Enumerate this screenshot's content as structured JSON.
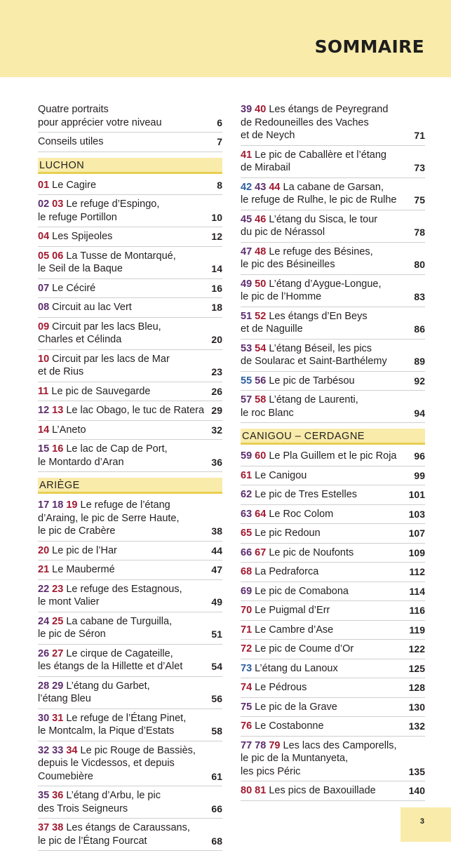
{
  "header": {
    "title": "SOMMAIRE"
  },
  "footer": {
    "page": "3"
  },
  "colors": {
    "band": "#f9ebaa",
    "section_rule": "#e7cf52",
    "red": "#a2192f",
    "purple": "#5c2d6e",
    "blue": "#2c5e9d"
  },
  "left": [
    {
      "kind": "entry",
      "nums": [],
      "text": "Quatre portraits",
      "cont": [
        "pour apprécier votre niveau"
      ],
      "page": "6"
    },
    {
      "kind": "entry",
      "nums": [],
      "text": "Conseils utiles",
      "cont": [],
      "page": "7"
    },
    {
      "kind": "section",
      "title": "LUCHON"
    },
    {
      "kind": "entry",
      "nums": [
        {
          "n": "01",
          "c": "red"
        }
      ],
      "text": "Le Cagire",
      "cont": [],
      "page": "8"
    },
    {
      "kind": "entry",
      "nums": [
        {
          "n": "02",
          "c": "purple"
        },
        {
          "n": "03",
          "c": "red"
        }
      ],
      "text": "Le refuge d’Espingo,",
      "cont": [
        "le refuge Portillon"
      ],
      "page": "10"
    },
    {
      "kind": "entry",
      "nums": [
        {
          "n": "04",
          "c": "red"
        }
      ],
      "text": "Les Spijeoles",
      "cont": [],
      "page": "12"
    },
    {
      "kind": "entry",
      "nums": [
        {
          "n": "05",
          "c": "red"
        },
        {
          "n": "06",
          "c": "red"
        }
      ],
      "text": "La Tusse de Montarqué,",
      "cont": [
        "le Seil de la Baque"
      ],
      "page": "14"
    },
    {
      "kind": "entry",
      "nums": [
        {
          "n": "07",
          "c": "purple"
        }
      ],
      "text": "Le Céciré",
      "cont": [],
      "page": "16"
    },
    {
      "kind": "entry",
      "nums": [
        {
          "n": "08",
          "c": "purple"
        }
      ],
      "text": "Circuit au lac Vert",
      "cont": [],
      "page": "18"
    },
    {
      "kind": "entry",
      "nums": [
        {
          "n": "09",
          "c": "red"
        }
      ],
      "text": "Circuit par les lacs Bleu,",
      "cont": [
        "Charles et Célinda"
      ],
      "page": "20"
    },
    {
      "kind": "entry",
      "nums": [
        {
          "n": "10",
          "c": "red"
        }
      ],
      "text": "Circuit par les lacs de Mar",
      "cont": [
        "et de Rius"
      ],
      "page": "23"
    },
    {
      "kind": "entry",
      "nums": [
        {
          "n": "11",
          "c": "red"
        }
      ],
      "text": "Le pic de Sauvegarde",
      "cont": [],
      "page": "26"
    },
    {
      "kind": "entry",
      "nums": [
        {
          "n": "12",
          "c": "purple"
        },
        {
          "n": "13",
          "c": "red"
        }
      ],
      "text": "Le lac Obago, le tuc de Ratera",
      "cont": [],
      "page": "29"
    },
    {
      "kind": "entry",
      "nums": [
        {
          "n": "14",
          "c": "red"
        }
      ],
      "text": "L’Aneto",
      "cont": [],
      "page": "32"
    },
    {
      "kind": "entry",
      "nums": [
        {
          "n": "15",
          "c": "purple"
        },
        {
          "n": "16",
          "c": "red"
        }
      ],
      "text": "Le lac de Cap de Port,",
      "cont": [
        "le Montardo d’Aran"
      ],
      "page": "36"
    },
    {
      "kind": "section",
      "title": "ARIÈGE"
    },
    {
      "kind": "entry",
      "nums": [
        {
          "n": "17",
          "c": "purple"
        },
        {
          "n": "18",
          "c": "purple"
        },
        {
          "n": "19",
          "c": "red"
        }
      ],
      "text": "Le refuge de l’étang",
      "cont": [
        "d’Araing, le pic de Serre Haute,",
        "le pic de Crabère"
      ],
      "page": "38"
    },
    {
      "kind": "entry",
      "nums": [
        {
          "n": "20",
          "c": "red"
        }
      ],
      "text": "Le pic de l’Har",
      "cont": [],
      "page": "44"
    },
    {
      "kind": "entry",
      "nums": [
        {
          "n": "21",
          "c": "red"
        }
      ],
      "text": "Le Maubermé",
      "cont": [],
      "page": "47"
    },
    {
      "kind": "entry",
      "nums": [
        {
          "n": "22",
          "c": "purple"
        },
        {
          "n": "23",
          "c": "red"
        }
      ],
      "text": "Le refuge des Estagnous,",
      "cont": [
        "le mont Valier"
      ],
      "page": "49"
    },
    {
      "kind": "entry",
      "nums": [
        {
          "n": "24",
          "c": "purple"
        },
        {
          "n": "25",
          "c": "red"
        }
      ],
      "text": "La cabane de Turguilla,",
      "cont": [
        "le pic de Séron"
      ],
      "page": "51"
    },
    {
      "kind": "entry",
      "nums": [
        {
          "n": "26",
          "c": "purple"
        },
        {
          "n": "27",
          "c": "red"
        }
      ],
      "text": "Le cirque de Cagateille,",
      "cont": [
        "les étangs de la Hillette et d’Alet"
      ],
      "page": "54"
    },
    {
      "kind": "entry",
      "nums": [
        {
          "n": "28",
          "c": "purple"
        },
        {
          "n": "29",
          "c": "purple"
        }
      ],
      "text": "L’étang du Garbet,",
      "cont": [
        "l’étang Bleu"
      ],
      "page": "56"
    },
    {
      "kind": "entry",
      "nums": [
        {
          "n": "30",
          "c": "purple"
        },
        {
          "n": "31",
          "c": "red"
        }
      ],
      "text": "Le refuge de l’Étang Pinet,",
      "cont": [
        "le Montcalm, la Pique d’Estats"
      ],
      "page": "58"
    },
    {
      "kind": "entry",
      "nums": [
        {
          "n": "32",
          "c": "purple"
        },
        {
          "n": "33",
          "c": "purple"
        },
        {
          "n": "34",
          "c": "red"
        }
      ],
      "text": "Le pic Rouge de Bassiès,",
      "cont": [
        "depuis le Vicdessos, et depuis",
        "Coumebière"
      ],
      "page": "61"
    },
    {
      "kind": "entry",
      "nums": [
        {
          "n": "35",
          "c": "purple"
        },
        {
          "n": "36",
          "c": "red"
        }
      ],
      "text": "L’étang d’Arbu, le pic",
      "cont": [
        "des Trois Seigneurs"
      ],
      "page": "66"
    },
    {
      "kind": "entry",
      "nums": [
        {
          "n": "37",
          "c": "red"
        },
        {
          "n": "38",
          "c": "red"
        }
      ],
      "text": "Les étangs de Caraussans,",
      "cont": [
        "le pic de l’Étang Fourcat"
      ],
      "page": "68"
    }
  ],
  "right": [
    {
      "kind": "entry",
      "nums": [
        {
          "n": "39",
          "c": "purple"
        },
        {
          "n": "40",
          "c": "red"
        }
      ],
      "text": "Les étangs de Peyregrand",
      "cont": [
        "de Redouneilles des Vaches",
        "et de Neych"
      ],
      "page": "71"
    },
    {
      "kind": "entry",
      "nums": [
        {
          "n": "41",
          "c": "red"
        }
      ],
      "text": "Le pic de Caballère et l’étang",
      "cont": [
        "de Mirabail"
      ],
      "page": "73"
    },
    {
      "kind": "entry",
      "nums": [
        {
          "n": "42",
          "c": "blue"
        },
        {
          "n": "43",
          "c": "purple"
        },
        {
          "n": "44",
          "c": "red"
        }
      ],
      "text": "La cabane de Garsan,",
      "cont": [
        "le refuge de Rulhe, le pic de Rulhe"
      ],
      "page": "75"
    },
    {
      "kind": "entry",
      "nums": [
        {
          "n": "45",
          "c": "purple"
        },
        {
          "n": "46",
          "c": "red"
        }
      ],
      "text": "L’étang du Sisca, le tour",
      "cont": [
        "du pic de Nérassol"
      ],
      "page": "78"
    },
    {
      "kind": "entry",
      "nums": [
        {
          "n": "47",
          "c": "purple"
        },
        {
          "n": "48",
          "c": "red"
        }
      ],
      "text": "Le refuge des Bésines,",
      "cont": [
        "le pic des Bésineilles"
      ],
      "page": "80"
    },
    {
      "kind": "entry",
      "nums": [
        {
          "n": "49",
          "c": "purple"
        },
        {
          "n": "50",
          "c": "red"
        }
      ],
      "text": "L’étang d’Aygue-Longue,",
      "cont": [
        "le pic de l’Homme"
      ],
      "page": "83"
    },
    {
      "kind": "entry",
      "nums": [
        {
          "n": "51",
          "c": "purple"
        },
        {
          "n": "52",
          "c": "red"
        }
      ],
      "text": "Les étangs d’En Beys",
      "cont": [
        "et de Naguille"
      ],
      "page": "86"
    },
    {
      "kind": "entry",
      "nums": [
        {
          "n": "53",
          "c": "purple"
        },
        {
          "n": "54",
          "c": "red"
        }
      ],
      "text": "L’étang Béseil, les pics",
      "cont": [
        "de Soularac et Saint-Barthélemy"
      ],
      "page": "89"
    },
    {
      "kind": "entry",
      "nums": [
        {
          "n": "55",
          "c": "blue"
        },
        {
          "n": "56",
          "c": "purple"
        }
      ],
      "text": "Le pic de Tarbésou",
      "cont": [],
      "page": "92"
    },
    {
      "kind": "entry",
      "nums": [
        {
          "n": "57",
          "c": "purple"
        },
        {
          "n": "58",
          "c": "red"
        }
      ],
      "text": "L’étang de Laurenti,",
      "cont": [
        "le roc Blanc"
      ],
      "page": "94"
    },
    {
      "kind": "section",
      "title": "CANIGOU – CERDAGNE"
    },
    {
      "kind": "entry",
      "nums": [
        {
          "n": "59",
          "c": "purple"
        },
        {
          "n": "60",
          "c": "red"
        }
      ],
      "text": "Le Pla Guillem et le pic Roja",
      "cont": [],
      "page": "96"
    },
    {
      "kind": "entry",
      "nums": [
        {
          "n": "61",
          "c": "red"
        }
      ],
      "text": "Le Canigou",
      "cont": [],
      "page": "99"
    },
    {
      "kind": "entry",
      "nums": [
        {
          "n": "62",
          "c": "purple"
        }
      ],
      "text": "Le pic de Tres Estelles",
      "cont": [],
      "page": "101"
    },
    {
      "kind": "entry",
      "nums": [
        {
          "n": "63",
          "c": "purple"
        },
        {
          "n": "64",
          "c": "red"
        }
      ],
      "text": "Le Roc Colom",
      "cont": [],
      "page": "103"
    },
    {
      "kind": "entry",
      "nums": [
        {
          "n": "65",
          "c": "red"
        }
      ],
      "text": "Le pic Redoun",
      "cont": [],
      "page": "107"
    },
    {
      "kind": "entry",
      "nums": [
        {
          "n": "66",
          "c": "purple"
        },
        {
          "n": "67",
          "c": "red"
        }
      ],
      "text": "Le pic de Noufonts",
      "cont": [],
      "page": "109"
    },
    {
      "kind": "entry",
      "nums": [
        {
          "n": "68",
          "c": "red"
        }
      ],
      "text": "La Pedraforca",
      "cont": [],
      "page": "112"
    },
    {
      "kind": "entry",
      "nums": [
        {
          "n": "69",
          "c": "purple"
        }
      ],
      "text": "Le pic de Comabona",
      "cont": [],
      "page": "114"
    },
    {
      "kind": "entry",
      "nums": [
        {
          "n": "70",
          "c": "red"
        }
      ],
      "text": "Le Puigmal d’Err",
      "cont": [],
      "page": "116"
    },
    {
      "kind": "entry",
      "nums": [
        {
          "n": "71",
          "c": "red"
        }
      ],
      "text": "Le Cambre d’Ase",
      "cont": [],
      "page": "119"
    },
    {
      "kind": "entry",
      "nums": [
        {
          "n": "72",
          "c": "red"
        }
      ],
      "text": "Le pic de Coume d’Or",
      "cont": [],
      "page": "122"
    },
    {
      "kind": "entry",
      "nums": [
        {
          "n": "73",
          "c": "blue"
        }
      ],
      "text": "L’étang du Lanoux",
      "cont": [],
      "page": "125"
    },
    {
      "kind": "entry",
      "nums": [
        {
          "n": "74",
          "c": "red"
        }
      ],
      "text": "Le Pédrous",
      "cont": [],
      "page": "128"
    },
    {
      "kind": "entry",
      "nums": [
        {
          "n": "75",
          "c": "purple"
        }
      ],
      "text": "Le pic de la Grave",
      "cont": [],
      "page": "130"
    },
    {
      "kind": "entry",
      "nums": [
        {
          "n": "76",
          "c": "red"
        }
      ],
      "text": "Le Costabonne",
      "cont": [],
      "page": "132"
    },
    {
      "kind": "entry",
      "nums": [
        {
          "n": "77",
          "c": "purple"
        },
        {
          "n": "78",
          "c": "purple"
        },
        {
          "n": "79",
          "c": "red"
        }
      ],
      "text": "Les lacs des Camporells,",
      "cont": [
        "le pic de la Muntanyeta,",
        "les pics Péric"
      ],
      "page": "135"
    },
    {
      "kind": "entry",
      "nums": [
        {
          "n": "80",
          "c": "red"
        },
        {
          "n": "81",
          "c": "red"
        }
      ],
      "text": "Les pics de Baxouillade",
      "cont": [],
      "page": "140"
    }
  ]
}
